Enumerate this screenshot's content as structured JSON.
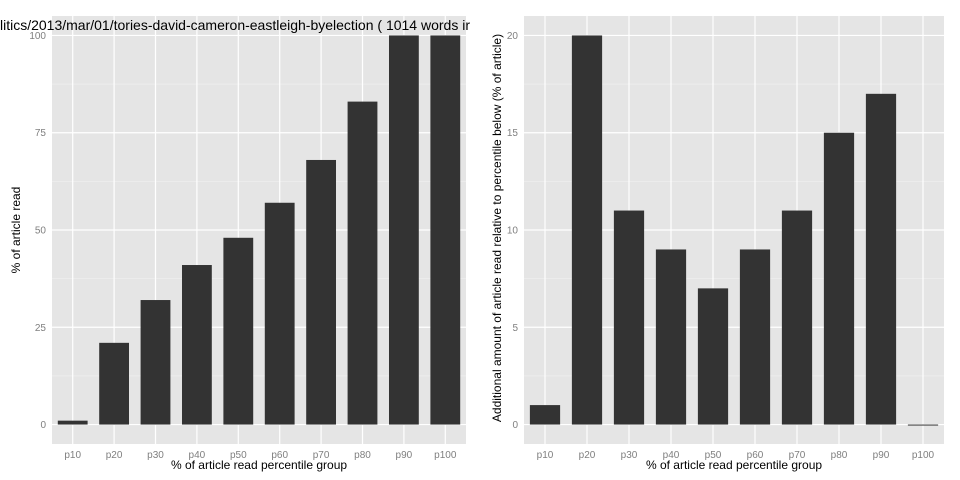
{
  "chart_data": [
    {
      "type": "bar",
      "title": "litics/2013/mar/01/tories-david-cameron-eastleigh-byelection ( 1014 words ir",
      "xlabel": "% of article read percentile group",
      "ylabel": "% of article read",
      "categories": [
        "p10",
        "p20",
        "p30",
        "p40",
        "p50",
        "p60",
        "p70",
        "p80",
        "p90",
        "p100"
      ],
      "values": [
        1,
        21,
        32,
        41,
        48,
        57,
        68,
        83,
        100,
        100
      ],
      "ylim": [
        -5,
        105
      ],
      "yticks": [
        0,
        25,
        50,
        75,
        100
      ],
      "grid": true,
      "bar_color": "#333333",
      "panel_color": "#e5e5e5"
    },
    {
      "type": "bar",
      "title": "",
      "xlabel": "% of article read percentile group",
      "ylabel": "Additional amount of article read relative to percentile below (% of article)",
      "categories": [
        "p10",
        "p20",
        "p30",
        "p40",
        "p50",
        "p60",
        "p70",
        "p80",
        "p90",
        "p100"
      ],
      "values": [
        1,
        20,
        11,
        9,
        7,
        9,
        11,
        15,
        17,
        0
      ],
      "ylim": [
        -1,
        21
      ],
      "yticks": [
        0,
        5,
        10,
        15,
        20
      ],
      "grid": true,
      "bar_color": "#333333",
      "panel_color": "#e5e5e5"
    }
  ]
}
